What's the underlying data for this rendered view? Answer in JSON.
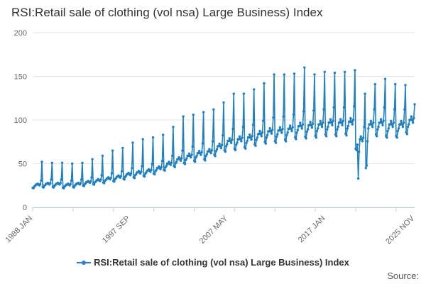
{
  "chart_data": {
    "type": "line",
    "title": "RSI:Retail sale of clothing (vol nsa) Large Business) Index",
    "xlabel": "",
    "ylabel": "",
    "ylim": [
      0,
      200
    ],
    "yticks": [
      0,
      50,
      100,
      150,
      200
    ],
    "x_range": [
      "1988 JAN",
      "2025 NOV"
    ],
    "xticks": [
      "1988 JAN",
      "1997 SEP",
      "2007 MAY",
      "2017 JAN",
      "2025 NOV"
    ],
    "grid": "horizontal",
    "legend": "bottom",
    "series": [
      {
        "name": "RSI:Retail sale of clothing (vol nsa) Large Business) Index",
        "color": "#1f7fc1",
        "december_peaks": [
          {
            "year": 1988,
            "value": 52
          },
          {
            "year": 1989,
            "value": 51
          },
          {
            "year": 1990,
            "value": 51
          },
          {
            "year": 1991,
            "value": 50
          },
          {
            "year": 1992,
            "value": 51
          },
          {
            "year": 1993,
            "value": 55
          },
          {
            "year": 1994,
            "value": 59
          },
          {
            "year": 1995,
            "value": 65
          },
          {
            "year": 1996,
            "value": 68
          },
          {
            "year": 1997,
            "value": 74
          },
          {
            "year": 1998,
            "value": 78
          },
          {
            "year": 1999,
            "value": 80
          },
          {
            "year": 2000,
            "value": 83
          },
          {
            "year": 2001,
            "value": 92
          },
          {
            "year": 2002,
            "value": 104
          },
          {
            "year": 2003,
            "value": 106
          },
          {
            "year": 2004,
            "value": 109
          },
          {
            "year": 2005,
            "value": 112
          },
          {
            "year": 2006,
            "value": 120
          },
          {
            "year": 2007,
            "value": 130
          },
          {
            "year": 2008,
            "value": 130
          },
          {
            "year": 2009,
            "value": 135
          },
          {
            "year": 2010,
            "value": 142
          },
          {
            "year": 2011,
            "value": 152
          },
          {
            "year": 2012,
            "value": 152
          },
          {
            "year": 2013,
            "value": 153
          },
          {
            "year": 2014,
            "value": 160
          },
          {
            "year": 2015,
            "value": 152
          },
          {
            "year": 2016,
            "value": 155
          },
          {
            "year": 2017,
            "value": 154
          },
          {
            "year": 2018,
            "value": 155
          },
          {
            "year": 2019,
            "value": 157
          },
          {
            "year": 2020,
            "value": 130
          },
          {
            "year": 2021,
            "value": 141
          },
          {
            "year": 2022,
            "value": 147
          },
          {
            "year": 2023,
            "value": 141
          },
          {
            "year": 2024,
            "value": 140
          }
        ],
        "annual_base": [
          {
            "year": 1988,
            "value": 26
          },
          {
            "year": 1989,
            "value": 27
          },
          {
            "year": 1990,
            "value": 27
          },
          {
            "year": 1991,
            "value": 26
          },
          {
            "year": 1992,
            "value": 27
          },
          {
            "year": 1993,
            "value": 29
          },
          {
            "year": 1994,
            "value": 31
          },
          {
            "year": 1995,
            "value": 33
          },
          {
            "year": 1996,
            "value": 35
          },
          {
            "year": 1997,
            "value": 38
          },
          {
            "year": 1998,
            "value": 40
          },
          {
            "year": 1999,
            "value": 42
          },
          {
            "year": 2000,
            "value": 45
          },
          {
            "year": 2001,
            "value": 50
          },
          {
            "year": 2002,
            "value": 55
          },
          {
            "year": 2003,
            "value": 59
          },
          {
            "year": 2004,
            "value": 62
          },
          {
            "year": 2005,
            "value": 64
          },
          {
            "year": 2006,
            "value": 70
          },
          {
            "year": 2007,
            "value": 76
          },
          {
            "year": 2008,
            "value": 78
          },
          {
            "year": 2009,
            "value": 80
          },
          {
            "year": 2010,
            "value": 84
          },
          {
            "year": 2011,
            "value": 87
          },
          {
            "year": 2012,
            "value": 88
          },
          {
            "year": 2013,
            "value": 90
          },
          {
            "year": 2014,
            "value": 93
          },
          {
            "year": 2015,
            "value": 94
          },
          {
            "year": 2016,
            "value": 95
          },
          {
            "year": 2017,
            "value": 97
          },
          {
            "year": 2018,
            "value": 97
          },
          {
            "year": 2019,
            "value": 98
          },
          {
            "year": 2020,
            "value": 78
          },
          {
            "year": 2021,
            "value": 95
          },
          {
            "year": 2022,
            "value": 97
          },
          {
            "year": 2023,
            "value": 95
          },
          {
            "year": 2024,
            "value": 95
          },
          {
            "year": 2025,
            "value": 100
          }
        ],
        "covid_lows": [
          {
            "date": "2020 APR",
            "value": 33
          },
          {
            "date": "2021 JAN",
            "value": 45
          },
          {
            "date": "2021 FEB",
            "value": 48
          }
        ],
        "last_value": {
          "date": "2025 NOV",
          "value": 118
        }
      }
    ]
  },
  "source": {
    "label": "Source:"
  }
}
